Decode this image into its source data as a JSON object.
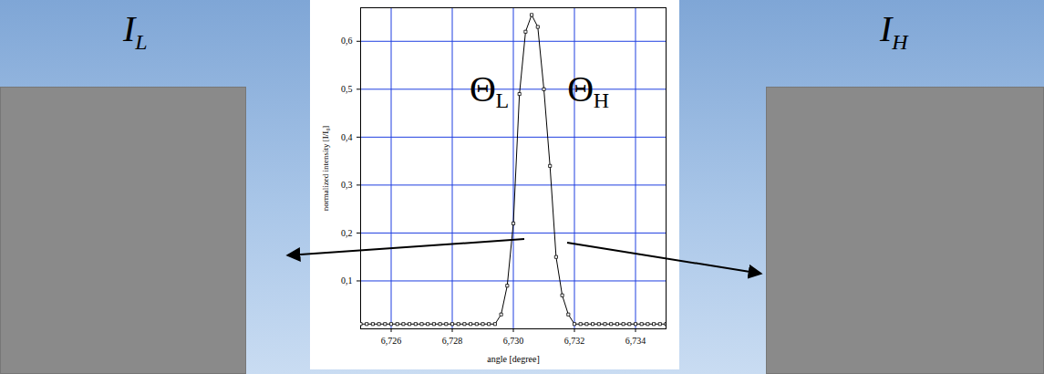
{
  "chart_data": {
    "type": "line",
    "x_label": "angle [degree]",
    "y_label": "normalized intensity [I/I₀]",
    "x": [
      6.725,
      6.7252,
      6.7254,
      6.7256,
      6.7258,
      6.726,
      6.7262,
      6.7264,
      6.7266,
      6.7268,
      6.727,
      6.7272,
      6.7274,
      6.7276,
      6.7278,
      6.728,
      6.7282,
      6.7284,
      6.7286,
      6.7288,
      6.729,
      6.7292,
      6.7294,
      6.7296,
      6.7298,
      6.73,
      6.7302,
      6.7304,
      6.7306,
      6.7308,
      6.731,
      6.7312,
      6.7314,
      6.7316,
      6.7318,
      6.732,
      6.7322,
      6.7324,
      6.7326,
      6.7328,
      6.733,
      6.7332,
      6.7334,
      6.7336,
      6.7338,
      6.734,
      6.7342,
      6.7344,
      6.7346,
      6.7348,
      6.735
    ],
    "series": [
      {
        "name": "normalized intensity",
        "color": "#000000",
        "marker": "square",
        "line_style": "solid",
        "values": [
          0.01,
          0.01,
          0.01,
          0.01,
          0.01,
          0.01,
          0.01,
          0.01,
          0.01,
          0.01,
          0.01,
          0.01,
          0.01,
          0.01,
          0.01,
          0.01,
          0.01,
          0.01,
          0.01,
          0.01,
          0.01,
          0.01,
          0.01,
          0.03,
          0.09,
          0.22,
          0.49,
          0.62,
          0.655,
          0.63,
          0.5,
          0.34,
          0.15,
          0.07,
          0.03,
          0.01,
          0.01,
          0.01,
          0.01,
          0.01,
          0.01,
          0.01,
          0.01,
          0.01,
          0.01,
          0.01,
          0.01,
          0.01,
          0.01,
          0.01,
          0.01
        ]
      }
    ],
    "xlim": [
      6.725,
      6.735
    ],
    "xticks": [
      {
        "value": 6.726,
        "label": "6,726"
      },
      {
        "value": 6.728,
        "label": "6,728"
      },
      {
        "value": 6.73,
        "label": "6,730"
      },
      {
        "value": 6.732,
        "label": "6,732"
      },
      {
        "value": 6.734,
        "label": "6,734"
      }
    ],
    "ylim": [
      0,
      0.67
    ],
    "yticks": [
      {
        "value": 0.1,
        "label": "0,1"
      },
      {
        "value": 0.2,
        "label": "0,2"
      },
      {
        "value": 0.3,
        "label": "0,3"
      },
      {
        "value": 0.4,
        "label": "0,4"
      },
      {
        "value": 0.5,
        "label": "0,5"
      },
      {
        "value": 0.6,
        "label": "0,6"
      }
    ],
    "grid": true,
    "annotations": [
      {
        "text": "Θ",
        "subscript": "L",
        "x": 6.729,
        "y": 0.5
      },
      {
        "text": "Θ",
        "subscript": "H",
        "x": 6.7322,
        "y": 0.5
      }
    ]
  },
  "images": [
    {
      "label": "I",
      "subscript": "L"
    },
    {
      "label": "I",
      "subscript": "H"
    }
  ]
}
